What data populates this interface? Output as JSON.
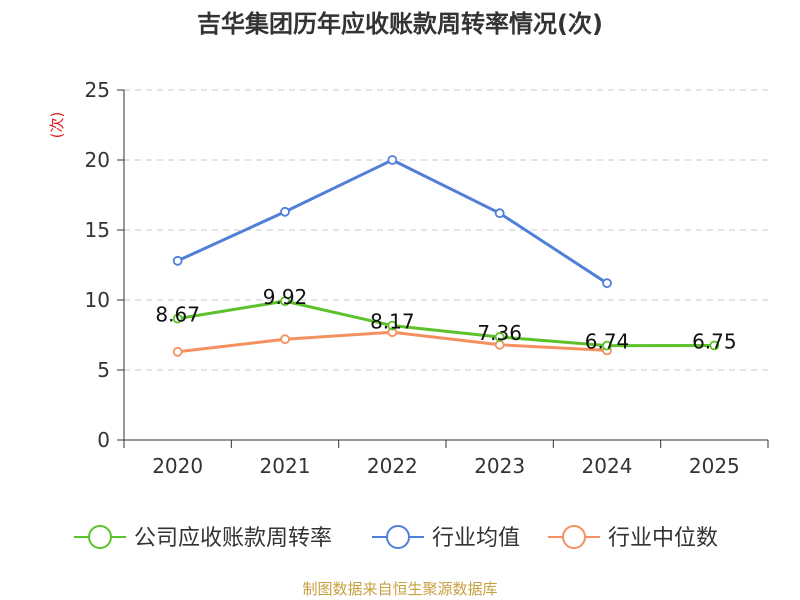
{
  "chart_data": {
    "type": "line",
    "title": "吉华集团历年应收账款周转率情况(次)",
    "ylabel": "(次)",
    "xlabel": "",
    "categories": [
      "2020",
      "2021",
      "2022",
      "2023",
      "2024",
      "2025"
    ],
    "ylim": [
      0,
      25
    ],
    "yticks": [
      0,
      5,
      10,
      15,
      20,
      25
    ],
    "grid": true,
    "legend_position": "bottom",
    "series": [
      {
        "name": "公司应收账款周转率",
        "color": "#5cc12b",
        "values": [
          8.67,
          9.92,
          8.17,
          7.36,
          6.74,
          6.75
        ],
        "labels": [
          "8.67",
          "9.92",
          "8.17",
          "7.36",
          "6.74",
          "6.75"
        ]
      },
      {
        "name": "行业均值",
        "color": "#4f7fd8",
        "values": [
          12.8,
          16.3,
          20.0,
          16.2,
          11.2,
          null
        ]
      },
      {
        "name": "行业中位数",
        "color": "#f59060",
        "values": [
          6.3,
          7.2,
          7.7,
          6.8,
          6.4,
          null
        ]
      }
    ]
  },
  "source": "制图数据来自恒生聚源数据库"
}
